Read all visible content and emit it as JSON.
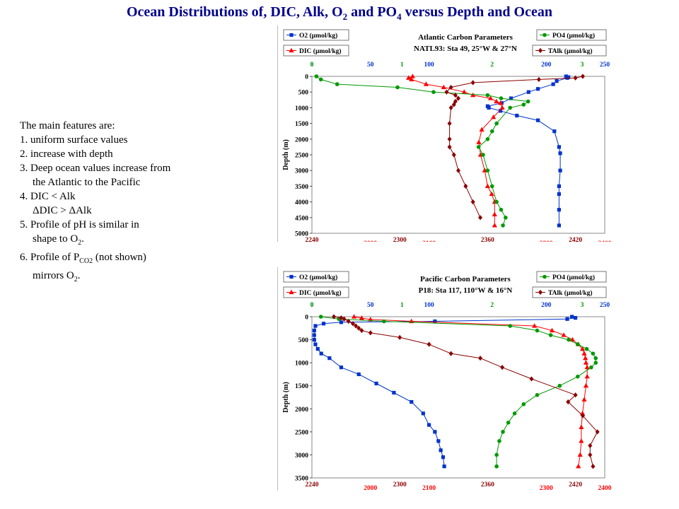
{
  "title": {
    "main_a": "Ocean Distributions of, DIC, Alk, O",
    "sub_a": "2",
    "main_b": " and PO",
    "sub_b": "4",
    "main_c": " versus Depth and Ocean"
  },
  "notes": {
    "heading": "The main features are:",
    "i1": "1. uniform surface values",
    "i2": "2. increase with depth",
    "i3a": "3. Deep ocean values increase from",
    "i3b": "the Atlantic to the Pacific",
    "i4a": "4. DIC < Alk",
    "i4b": "ΔDIC >  ΔAlk",
    "i5a": "5. Profile of pH is similar in",
    "i5b_text": "shape to O",
    "i5b_sub": "2",
    "i5b_end": ".",
    "i6a_text": "6. Profile of P",
    "i6a_sub": "CO2",
    "i6a_end": " (not shown)",
    "i6b_text": "mirrors O",
    "i6b_sub": "2",
    "i6b_end": "."
  },
  "colors": {
    "O2": "#0033cc",
    "DIC": "#ff0000",
    "PO4": "#009900",
    "TAlk": "#8b0000",
    "title": "#00008b"
  },
  "chart_data": [
    {
      "type": "line",
      "title": "Atlantic Carbon Parameters",
      "subtitle": "NATL93: Sta 49, 25°W & 27°N",
      "ylabel": "Depth (m)",
      "ylim": [
        0,
        5000
      ],
      "y_inverted": true,
      "y_ticks": [
        "0",
        "500",
        "1000",
        "1500",
        "2000",
        "2500",
        "3000",
        "3500",
        "4000",
        "4500",
        "5000"
      ],
      "legend": {
        "O2": "O2 (µmol/kg)",
        "DIC": "DIC (µmol/kg)",
        "PO4": "PO4 (µmol/kg)",
        "TAlk": "TAlk (µmol/kg)"
      },
      "top_axes": [
        {
          "series": "O2",
          "range": [
            0,
            250
          ],
          "ticks": [
            "0",
            "50",
            "100",
            "200",
            "250"
          ],
          "tick_values": [
            0,
            50,
            100,
            200,
            250
          ]
        },
        {
          "series": "PO4",
          "range": [
            0,
            3.25
          ],
          "ticks": [
            "0",
            "1",
            "2",
            "3"
          ],
          "tick_values": [
            0,
            1,
            2,
            3
          ]
        }
      ],
      "bottom_axes": [
        {
          "series": "TAlk",
          "range": [
            2240,
            2440
          ],
          "ticks": [
            "2240",
            "2300",
            "2360",
            "2420"
          ],
          "tick_values": [
            2240,
            2300,
            2360,
            2420
          ]
        },
        {
          "series": "DIC",
          "range": [
            1900,
            2400
          ],
          "ticks": [
            "2000",
            "2100",
            "2300",
            "2400"
          ],
          "tick_values": [
            2000,
            2100,
            2300,
            2400
          ]
        }
      ],
      "series": [
        {
          "name": "O2 (µmol/kg)",
          "key": "O2",
          "marker": "square",
          "x": [
            217,
            219,
            218,
            209,
            206,
            193,
            185,
            170,
            162,
            150,
            151,
            161,
            175,
            193,
            207,
            211,
            212,
            212,
            211,
            211,
            211,
            211
          ],
          "y": [
            0,
            25,
            50,
            150,
            250,
            400,
            500,
            700,
            850,
            950,
            1000,
            1100,
            1250,
            1400,
            1750,
            2250,
            2450,
            3000,
            3500,
            3750,
            4250,
            4750
          ]
        },
        {
          "name": "DIC (µmol/kg)",
          "key": "DIC",
          "marker": "triangle",
          "x": [
            2072,
            2065,
            2070,
            2095,
            2125,
            2160,
            2175,
            2205,
            2215,
            2222,
            2225,
            2210,
            2190,
            2185,
            2188,
            2195,
            2200,
            2207,
            2212,
            2212,
            2212
          ],
          "y": [
            0,
            50,
            100,
            250,
            350,
            500,
            600,
            700,
            800,
            850,
            1000,
            1300,
            1700,
            2100,
            2500,
            3000,
            3500,
            3750,
            4000,
            4400,
            4750
          ]
        },
        {
          "name": "PO4 (µmol/kg)",
          "key": "PO4",
          "marker": "circle",
          "x": [
            0.05,
            0.1,
            0.28,
            0.95,
            1.35,
            1.95,
            2.1,
            2.4,
            2.35,
            2.2,
            2.05,
            2.0,
            1.95,
            1.85,
            1.9,
            1.95,
            2.0,
            2.05,
            2.1,
            2.15,
            2.12
          ],
          "y": [
            0,
            100,
            250,
            350,
            500,
            600,
            700,
            800,
            900,
            1000,
            1500,
            1750,
            2000,
            2250,
            2500,
            3000,
            3500,
            4000,
            4250,
            4500,
            4750
          ]
        },
        {
          "name": "TAlk (µmol/kg)",
          "key": "TAlk",
          "marker": "diamond",
          "x": [
            2425,
            2420,
            2395,
            2350,
            2335,
            2332,
            2338,
            2340,
            2338,
            2337,
            2335,
            2334,
            2334,
            2334,
            2337,
            2340,
            2345,
            2350,
            2355
          ],
          "y": [
            0,
            50,
            100,
            200,
            350,
            500,
            600,
            700,
            800,
            900,
            1000,
            1500,
            2000,
            2250,
            2500,
            3000,
            3500,
            4000,
            4500
          ]
        }
      ]
    },
    {
      "type": "line",
      "title": "Pacific Carbon Parameters",
      "subtitle": "P18: Sta 117, 110°W & 16°N",
      "ylabel": "Depth (m)",
      "ylim": [
        0,
        3500
      ],
      "y_inverted": true,
      "y_ticks": [
        "0",
        "500",
        "1000",
        "1500",
        "2000",
        "2500",
        "3000",
        "3500"
      ],
      "legend": {
        "O2": "O2 (µmol/kg)",
        "DIC": "DIC (µmol/kg)",
        "PO4": "PO4 (µmol/kg)",
        "TAlk": "TAlk (µmol/kg)"
      },
      "top_axes": [
        {
          "series": "O2",
          "range": [
            0,
            250
          ],
          "ticks": [
            "0",
            "50",
            "100",
            "200",
            "250"
          ],
          "tick_values": [
            0,
            50,
            100,
            200,
            250
          ]
        },
        {
          "series": "PO4",
          "range": [
            0,
            3.25
          ],
          "ticks": [
            "0",
            "1",
            "2",
            "3"
          ],
          "tick_values": [
            0,
            1,
            2,
            3
          ]
        }
      ],
      "bottom_axes": [
        {
          "series": "TAlk",
          "range": [
            2240,
            2440
          ],
          "ticks": [
            "2240",
            "2300",
            "2360",
            "2420"
          ],
          "tick_values": [
            2240,
            2300,
            2360,
            2420
          ]
        },
        {
          "series": "DIC",
          "range": [
            1900,
            2400
          ],
          "ticks": [
            "2000",
            "2100",
            "2300",
            "2400"
          ],
          "tick_values": [
            2000,
            2100,
            2300,
            2400
          ]
        }
      ],
      "series": [
        {
          "name": "O2 (µmol/kg)",
          "key": "O2",
          "marker": "square",
          "x": [
            222,
            225,
            218,
            105,
            25,
            10,
            3,
            2,
            2,
            2,
            3,
            5,
            8,
            15,
            25,
            40,
            55,
            70,
            85,
            95,
            100,
            105,
            108,
            110,
            112,
            113
          ],
          "y": [
            0,
            25,
            50,
            100,
            120,
            150,
            200,
            300,
            400,
            500,
            600,
            700,
            800,
            900,
            1100,
            1250,
            1450,
            1650,
            1850,
            2100,
            2350,
            2500,
            2700,
            2900,
            3050,
            3250
          ]
        },
        {
          "name": "DIC (µmol/kg)",
          "key": "DIC",
          "marker": "triangle",
          "x": [
            1972,
            1985,
            2000,
            2070,
            2280,
            2310,
            2330,
            2345,
            2355,
            2362,
            2365,
            2367,
            2368,
            2370,
            2370,
            2368,
            2365,
            2362,
            2360,
            2360,
            2358,
            2355
          ],
          "y": [
            0,
            30,
            60,
            100,
            200,
            300,
            400,
            500,
            600,
            700,
            800,
            900,
            1000,
            1100,
            1300,
            1500,
            1800,
            2100,
            2400,
            2700,
            3000,
            3250
          ]
        },
        {
          "name": "PO4 (µmol/kg)",
          "key": "PO4",
          "marker": "circle",
          "x": [
            0.1,
            0.3,
            0.8,
            2.2,
            2.5,
            2.65,
            2.85,
            2.95,
            3.05,
            3.12,
            3.15,
            3.15,
            3.1,
            2.95,
            2.75,
            2.5,
            2.35,
            2.25,
            2.18,
            2.12,
            2.08,
            2.05,
            2.05
          ],
          "y": [
            0,
            50,
            100,
            200,
            300,
            400,
            500,
            600,
            700,
            800,
            900,
            1000,
            1100,
            1300,
            1500,
            1700,
            1900,
            2100,
            2300,
            2500,
            2700,
            3000,
            3250
          ]
        },
        {
          "name": "TAlk (µmol/kg)",
          "key": "TAlk",
          "marker": "diamond",
          "x": [
            2255,
            2260,
            2262,
            2265,
            2268,
            2270,
            2272,
            2274,
            2280,
            2300,
            2320,
            2335,
            2355,
            2370,
            2390,
            2420,
            2415,
            2425,
            2435,
            2430,
            2430,
            2432
          ],
          "y": [
            0,
            25,
            50,
            100,
            150,
            200,
            250,
            300,
            350,
            450,
            600,
            800,
            900,
            1100,
            1350,
            1700,
            1850,
            2150,
            2500,
            2800,
            3000,
            3250
          ]
        }
      ]
    }
  ]
}
